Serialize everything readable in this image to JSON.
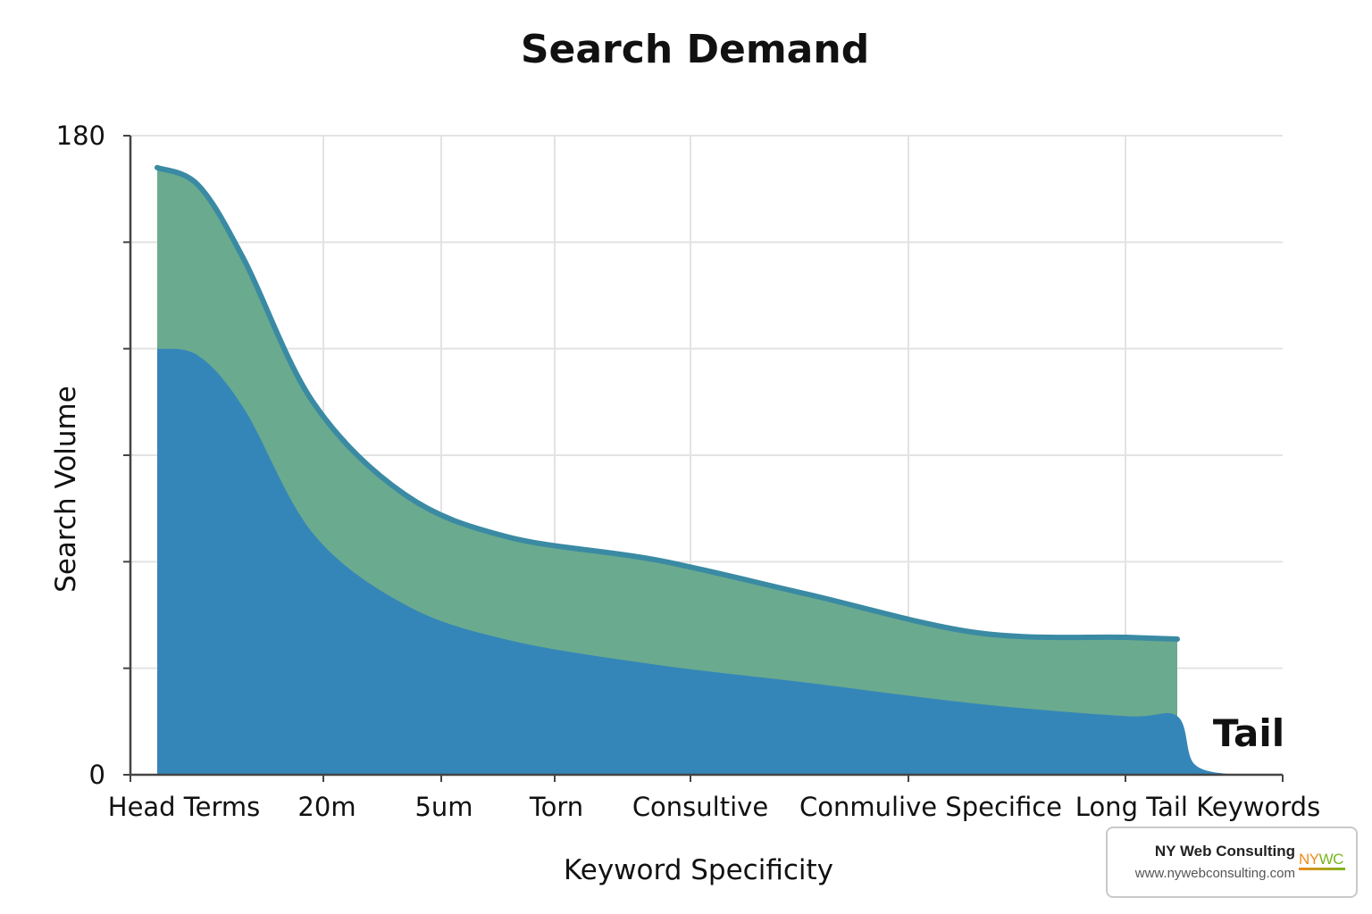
{
  "chart_data": {
    "type": "area",
    "title": "Search Demand",
    "xlabel": "Keyword Specificity",
    "ylabel": "Search Volume",
    "ylim": [
      0,
      180
    ],
    "y_tick_labels": [
      "0",
      "180"
    ],
    "y_ticks": [
      0,
      30,
      60,
      90,
      120,
      150,
      180
    ],
    "categories": [
      "Head Terms",
      "20m",
      "5um",
      "Torn",
      "Consultive",
      "Conmulive Specifice",
      "Long Tail Keywords"
    ],
    "grid": true,
    "stacked": true,
    "series": [
      {
        "color": "#3586b8",
        "points": [
          [
            0.14,
            120
          ],
          [
            0.5,
            118
          ],
          [
            0.9,
            103
          ],
          [
            1.5,
            68
          ],
          [
            2.3,
            48
          ],
          [
            3.2,
            38
          ],
          [
            4.5,
            31
          ],
          [
            5.8,
            26
          ],
          [
            7.3,
            20
          ],
          [
            8.6,
            16.5
          ],
          [
            9.05,
            16.5
          ],
          [
            9.2,
            3
          ],
          [
            9.55,
            0
          ]
        ]
      },
      {
        "color": "#6aaa8f",
        "points": [
          [
            0.14,
            171
          ],
          [
            0.5,
            166
          ],
          [
            0.9,
            145
          ],
          [
            1.5,
            105
          ],
          [
            2.3,
            79
          ],
          [
            3.2,
            67
          ],
          [
            4.5,
            60.5
          ],
          [
            5.8,
            51
          ],
          [
            7.3,
            40
          ],
          [
            8.6,
            38.7
          ],
          [
            9.05,
            38.2
          ]
        ]
      }
    ],
    "annotations": [
      {
        "text": "Tail"
      }
    ]
  },
  "brand": {
    "name": "NY Web Consulting",
    "url": "www.nywebconsulting.com",
    "logo_text": "NYWC",
    "logo_colors": [
      "#f08a1c",
      "#7ab51d"
    ]
  }
}
